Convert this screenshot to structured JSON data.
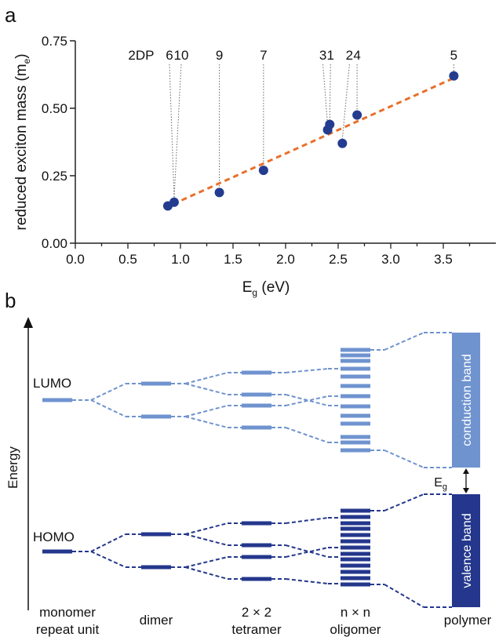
{
  "panel_a": {
    "label": "a",
    "chart_data": {
      "type": "scatter",
      "xlabel_main": "E",
      "xlabel_sub": "g",
      "xlabel_unit": " (eV)",
      "ylabel_main": "reduced exciton mass (m",
      "ylabel_sub": "e",
      "ylabel_close": ")",
      "xlim": [
        0,
        4.0
      ],
      "ylim": [
        0,
        0.75
      ],
      "xticks": [
        "0.0",
        "0.5",
        "1.0",
        "1.5",
        "2.0",
        "2.5",
        "3.0",
        "3.5"
      ],
      "yticks": [
        "0.00",
        "0.25",
        "0.50",
        "0.75"
      ],
      "point_color": "#233c8f",
      "fit_color": "#e8702a",
      "fit_line": {
        "x": [
          0.93,
          3.6
        ],
        "y": [
          0.145,
          0.612
        ]
      },
      "points": [
        {
          "label": "2DP",
          "x": 0.88,
          "y": 0.138
        },
        {
          "label": "6",
          "x": 0.94,
          "y": 0.152
        },
        {
          "label": "10",
          "x": 0.94,
          "y": 0.152
        },
        {
          "label": "9",
          "x": 1.37,
          "y": 0.188
        },
        {
          "label": "7",
          "x": 1.79,
          "y": 0.27
        },
        {
          "label": "3",
          "x": 2.4,
          "y": 0.42
        },
        {
          "label": "1",
          "x": 2.42,
          "y": 0.44
        },
        {
          "label": "2",
          "x": 2.54,
          "y": 0.37
        },
        {
          "label": "4",
          "x": 2.68,
          "y": 0.475
        },
        {
          "label": "5",
          "x": 3.6,
          "y": 0.62
        }
      ]
    }
  },
  "panel_b": {
    "label": "b",
    "energy_label": "Energy",
    "lumo_label": "LUMO",
    "homo_label": "HOMO",
    "conduction_band_label": "conduction band",
    "valence_band_label": "valence band",
    "gap_label_main": "E",
    "gap_label_sub": "g",
    "lumo_color": "#6f93cf",
    "homo_color": "#24378c",
    "columns": [
      {
        "line1": "monomer",
        "line2": "repeat unit"
      },
      {
        "line1": "dimer",
        "line2": ""
      },
      {
        "line1": "2 × 2",
        "line2": "tetramer"
      },
      {
        "line1": "n × n",
        "line2": "oligomer"
      },
      {
        "line1": "polymer",
        "line2": ""
      }
    ]
  }
}
